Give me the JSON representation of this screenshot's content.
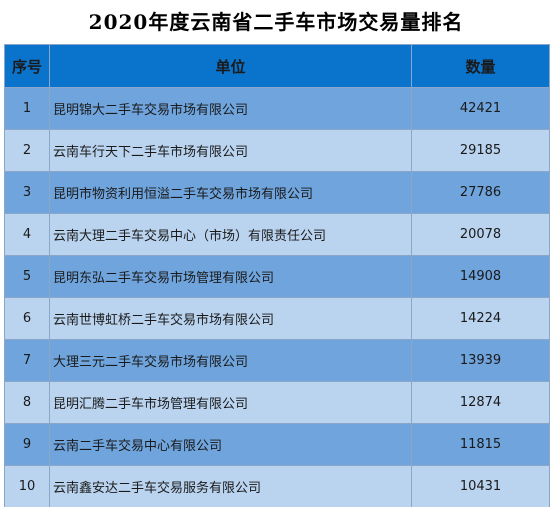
{
  "title": "2020年度云南省二手车市场交易量排名",
  "colors": {
    "header_bg": "#0a74cc",
    "row_dark": "#6fa4dd",
    "row_light": "#bad4f0",
    "border": "#8aa6c8"
  },
  "table": {
    "headers": [
      "序号",
      "单位",
      "数量"
    ],
    "rows": [
      {
        "rank": "1",
        "company": "昆明锦大二手车交易市场有限公司",
        "count": "42421"
      },
      {
        "rank": "2",
        "company": "云南车行天下二手车市场有限公司",
        "count": "29185"
      },
      {
        "rank": "3",
        "company": "昆明市物资利用恒溢二手车交易市场有限公司",
        "count": "27786"
      },
      {
        "rank": "4",
        "company": "云南大理二手车交易中心（市场）有限责任公司",
        "count": "20078"
      },
      {
        "rank": "5",
        "company": "昆明东弘二手车交易市场管理有限公司",
        "count": "14908"
      },
      {
        "rank": "6",
        "company": "云南世博虹桥二手车交易市场有限公司",
        "count": "14224"
      },
      {
        "rank": "7",
        "company": "大理三元二手车交易市场有限公司",
        "count": "13939"
      },
      {
        "rank": "8",
        "company": "昆明汇腾二手车市场管理有限公司",
        "count": "12874"
      },
      {
        "rank": "9",
        "company": "云南二手车交易中心有限公司",
        "count": "11815"
      },
      {
        "rank": "10",
        "company": "云南鑫安达二手车交易服务有限公司",
        "count": "10431"
      }
    ]
  }
}
